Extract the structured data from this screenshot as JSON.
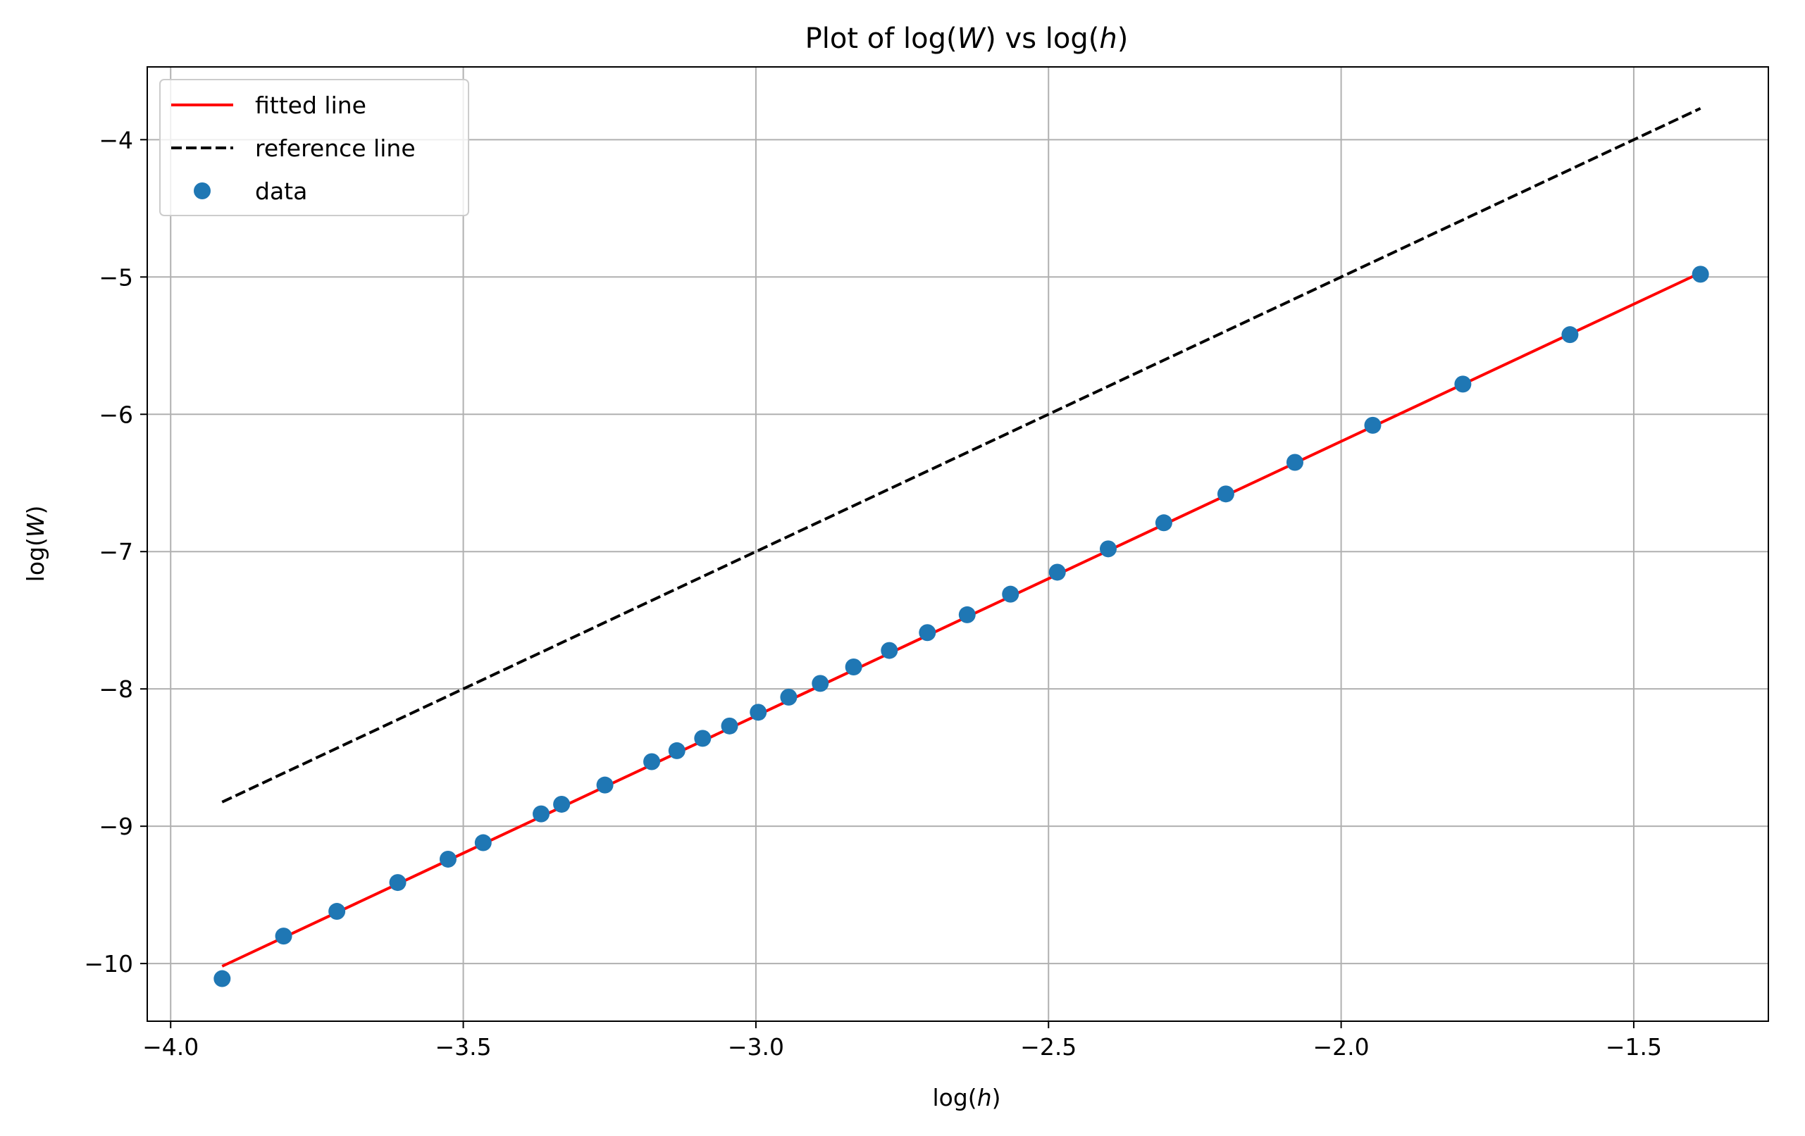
{
  "chart_data": {
    "type": "scatter",
    "title": {
      "pre": "Plot of log(",
      "v1": "W",
      "mid": ") vs log(",
      "v2": "h",
      "post": ")"
    },
    "xlabel": {
      "pre": "log(",
      "var": "h",
      "post": ")"
    },
    "ylabel": {
      "pre": "log(",
      "var": "W",
      "post": ")"
    },
    "xlim": [
      -4.04,
      -1.27
    ],
    "ylim": [
      -10.42,
      -3.47
    ],
    "xticks": [
      -4.0,
      -3.5,
      -3.0,
      -2.5,
      -2.0,
      -1.5
    ],
    "xtick_labels": [
      "−4.0",
      "−3.5",
      "−3.0",
      "−2.5",
      "−2.0",
      "−1.5"
    ],
    "yticks": [
      -10,
      -9,
      -8,
      -7,
      -6,
      -5,
      -4
    ],
    "ytick_labels": [
      "−10",
      "−9",
      "−8",
      "−7",
      "−6",
      "−5",
      "−4"
    ],
    "grid": true,
    "legend_position": "top-left",
    "series": [
      {
        "name": "fitted line",
        "kind": "line",
        "color": "#ff0000",
        "dash": "solid",
        "x": [
          -3.912,
          -1.386
        ],
        "y": [
          -10.02,
          -4.97
        ]
      },
      {
        "name": "reference line",
        "kind": "line",
        "color": "#000000",
        "dash": "dashed",
        "x": [
          -3.912,
          -1.386
        ],
        "y": [
          -8.824,
          -3.772
        ]
      },
      {
        "name": "data",
        "kind": "scatter",
        "color": "#1f77b4",
        "x": [
          -3.912,
          -3.807,
          -3.716,
          -3.612,
          -3.526,
          -3.466,
          -3.367,
          -3.332,
          -3.258,
          -3.178,
          -3.135,
          -3.091,
          -3.045,
          -2.996,
          -2.944,
          -2.89,
          -2.833,
          -2.772,
          -2.707,
          -2.639,
          -2.565,
          -2.485,
          -2.398,
          -2.303,
          -2.197,
          -2.079,
          -1.946,
          -1.792,
          -1.609,
          -1.386
        ],
        "y": [
          -10.11,
          -9.8,
          -9.62,
          -9.41,
          -9.24,
          -9.12,
          -8.91,
          -8.84,
          -8.7,
          -8.53,
          -8.45,
          -8.36,
          -8.27,
          -8.17,
          -8.06,
          -7.96,
          -7.84,
          -7.72,
          -7.59,
          -7.46,
          -7.31,
          -7.15,
          -6.98,
          -6.79,
          -6.58,
          -6.35,
          -6.08,
          -5.78,
          -5.42,
          -4.98
        ]
      }
    ]
  }
}
